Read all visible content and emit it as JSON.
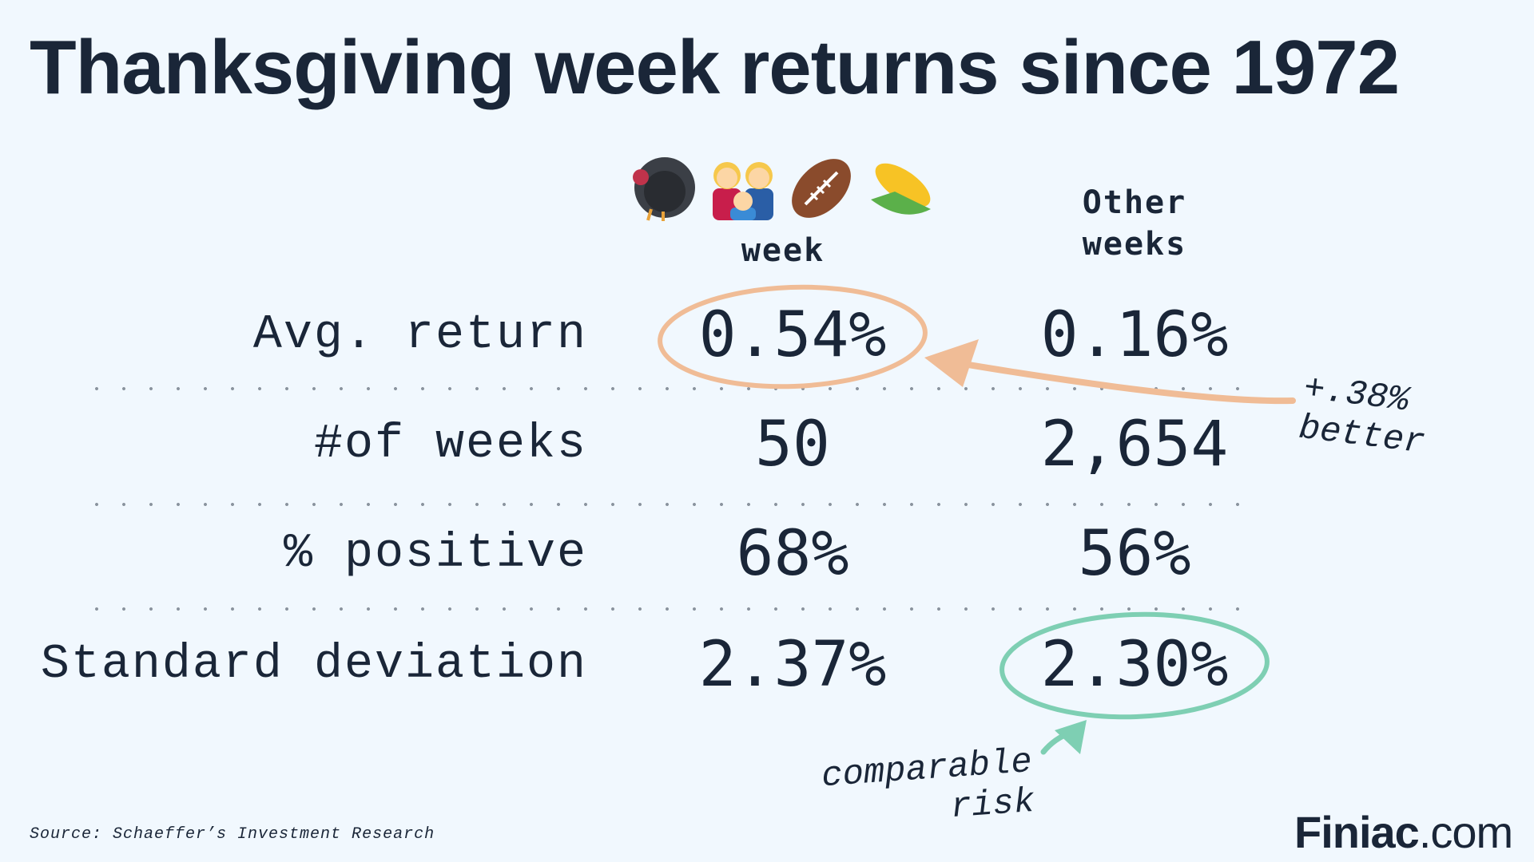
{
  "title": "Thanksgiving week returns since 1972",
  "columns": {
    "thanksgiving": {
      "icons": [
        "turkey-icon",
        "family-icon",
        "football-icon",
        "corn-icon"
      ],
      "label": "week"
    },
    "other": {
      "line1": "Other",
      "line2": "weeks"
    }
  },
  "rows": [
    {
      "label": "Avg. return",
      "thanksgiving": "0.54%",
      "other": "0.16%"
    },
    {
      "label": "#of weeks",
      "thanksgiving": "50",
      "other": "2,654"
    },
    {
      "label": "% positive",
      "thanksgiving": "68%",
      "other": "56%"
    },
    {
      "label": "Standard deviation",
      "thanksgiving": "2.37%",
      "other": "2.30%"
    }
  ],
  "annotations": {
    "better": {
      "line1": "+.38%",
      "line2": "better",
      "color": "#f0bc96"
    },
    "risk": {
      "line1": "comparable",
      "line2": "risk",
      "color": "#7ecfb3"
    }
  },
  "source": "Source: Schaeffer’s Investment Research",
  "brand": {
    "bold": "Finiac",
    "rest": ".com"
  }
}
